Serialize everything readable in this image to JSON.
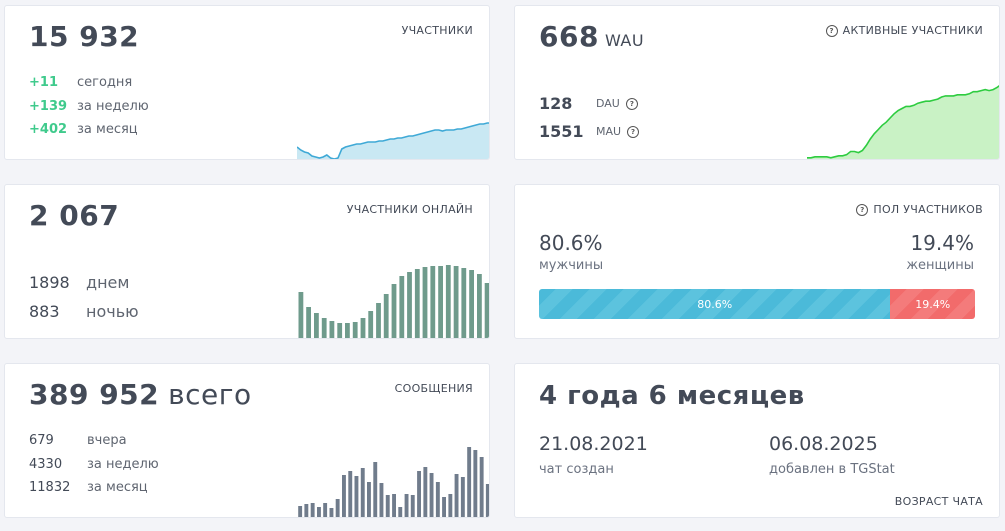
{
  "participants": {
    "total": "15 932",
    "label": "УЧАСТНИКИ",
    "stats": [
      {
        "value": "+11",
        "label": "сегодня"
      },
      {
        "value": "+139",
        "label": "за неделю"
      },
      {
        "value": "+402",
        "label": "за месяц"
      }
    ]
  },
  "active": {
    "value": "668",
    "unit": "WAU",
    "label": "АКТИВНЫЕ УЧАСТНИКИ",
    "dau_value": "128",
    "dau_label": "DAU",
    "mau_value": "1551",
    "mau_label": "MAU"
  },
  "online": {
    "value": "2 067",
    "label": "УЧАСТНИКИ ОНЛАЙН",
    "day_value": "1898",
    "day_label": "днем",
    "night_value": "883",
    "night_label": "ночью"
  },
  "gender": {
    "label": "ПОЛ УЧАСТНИКОВ",
    "male_pct": "80.6%",
    "male_label": "мужчины",
    "female_pct": "19.4%",
    "female_label": "женщины",
    "male_fraction": 0.806,
    "male_bar_text": "80.6%",
    "female_bar_text": "19.4%",
    "male_color": "#4bbad9",
    "female_color": "#f26b6b"
  },
  "messages": {
    "total": "389 952",
    "unit": "всего",
    "label": "СООБЩЕНИЯ",
    "stats": [
      {
        "value": "679",
        "label": "вчера"
      },
      {
        "value": "4330",
        "label": "за неделю"
      },
      {
        "value": "11832",
        "label": "за месяц"
      }
    ]
  },
  "age": {
    "value": "4 года 6 месяцев",
    "created_date": "21.08.2021",
    "created_label": "чат создан",
    "added_date": "06.08.2025",
    "added_label": "добавлен в TGStat",
    "label": "ВОЗРАСТ ЧАТА"
  },
  "chart_data": [
    {
      "type": "area",
      "chart": "participants",
      "color": "#3fa9d6",
      "values": [
        14,
        11,
        9,
        8,
        5,
        4,
        3,
        4,
        6,
        3,
        2,
        3,
        12,
        14,
        15,
        16,
        17,
        17,
        18,
        19,
        19,
        19,
        20,
        20,
        21,
        22,
        22,
        23,
        23,
        24,
        25,
        25,
        26,
        27,
        28,
        29,
        30,
        31,
        31,
        30,
        31,
        31,
        31,
        32,
        32,
        33,
        34,
        35,
        36,
        37,
        37,
        38,
        38
      ]
    },
    {
      "type": "area",
      "chart": "active",
      "color": "#2ecc40",
      "values": [
        3,
        3,
        4,
        4,
        4,
        4,
        3,
        4,
        5,
        5,
        6,
        9,
        9,
        8,
        10,
        15,
        21,
        26,
        30,
        34,
        37,
        41,
        45,
        48,
        50,
        52,
        52,
        53,
        55,
        56,
        57,
        57,
        58,
        59,
        61,
        62,
        62,
        62,
        63,
        63,
        63,
        64,
        66,
        66,
        67,
        68,
        67,
        68,
        70,
        73
      ]
    },
    {
      "type": "bar",
      "chart": "online",
      "color": "#6f9b8c",
      "values": [
        48,
        33,
        27,
        22,
        19,
        17,
        17,
        18,
        22,
        29,
        37,
        46,
        56,
        64,
        68,
        71,
        73,
        74,
        74,
        75,
        74,
        72,
        70,
        66,
        57
      ]
    },
    {
      "type": "bar",
      "chart": "messages",
      "color": "#707c8c",
      "values": [
        13,
        15,
        16,
        12,
        16,
        11,
        20,
        44,
        48,
        43,
        51,
        37,
        57,
        36,
        24,
        25,
        12,
        25,
        24,
        48,
        52,
        46,
        37,
        22,
        25,
        45,
        42,
        72,
        69,
        62,
        35
      ]
    }
  ]
}
